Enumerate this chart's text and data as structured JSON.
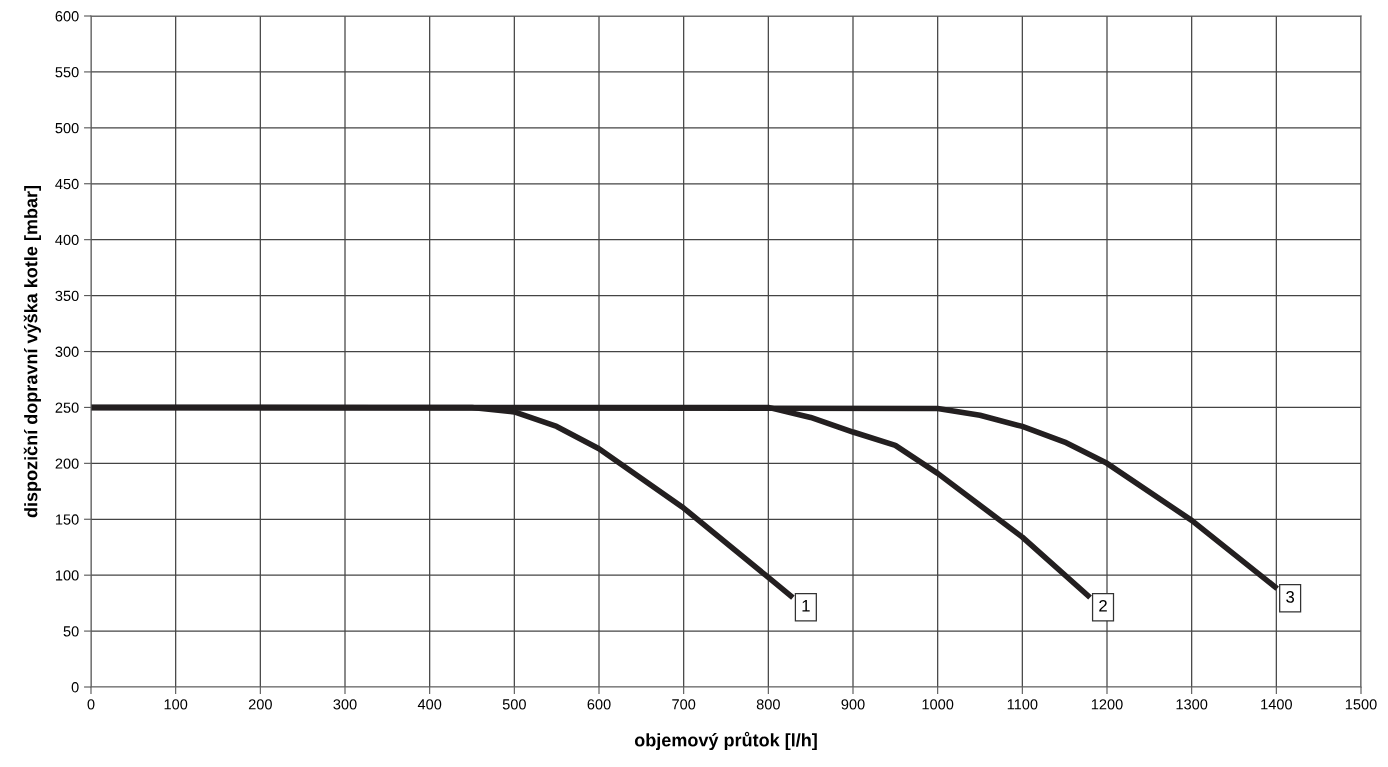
{
  "chart_data": {
    "type": "line",
    "xlabel": "objemový průtok [l/h]",
    "ylabel": "dispoziční dopravní výška kotle [mbar]",
    "series": [
      {
        "color": "#231f20",
        "x": [
          0,
          450,
          500,
          550,
          600,
          700,
          800,
          829
        ],
        "values": [
          250,
          250,
          246,
          233,
          213,
          160,
          98,
          80
        ]
      },
      {
        "color": "#231f20",
        "x": [
          0,
          800,
          850,
          900,
          950,
          1000,
          1100,
          1180
        ],
        "values": [
          250,
          250,
          241,
          228,
          216,
          191,
          134,
          80
        ]
      },
      {
        "color": "#231f20",
        "x": [
          0,
          1000,
          1050,
          1100,
          1150,
          1200,
          1300,
          1401
        ],
        "values": [
          250,
          249,
          243,
          233,
          219,
          200,
          149,
          88
        ]
      }
    ],
    "annotations": [
      {
        "text": "1",
        "x": 829,
        "y": 80
      },
      {
        "text": "2",
        "x": 1180,
        "y": 80
      },
      {
        "text": "3",
        "x": 1401,
        "y": 88
      }
    ],
    "xlim": [
      0,
      1500
    ],
    "xticks": [
      0,
      100,
      200,
      300,
      400,
      500,
      600,
      700,
      800,
      900,
      1000,
      1100,
      1200,
      1300,
      1400,
      1500
    ],
    "ylim": [
      0,
      600
    ],
    "yticks": [
      0,
      50,
      100,
      150,
      200,
      250,
      300,
      350,
      400,
      450,
      500,
      550,
      600
    ],
    "grid": true,
    "line_style": "solid"
  }
}
